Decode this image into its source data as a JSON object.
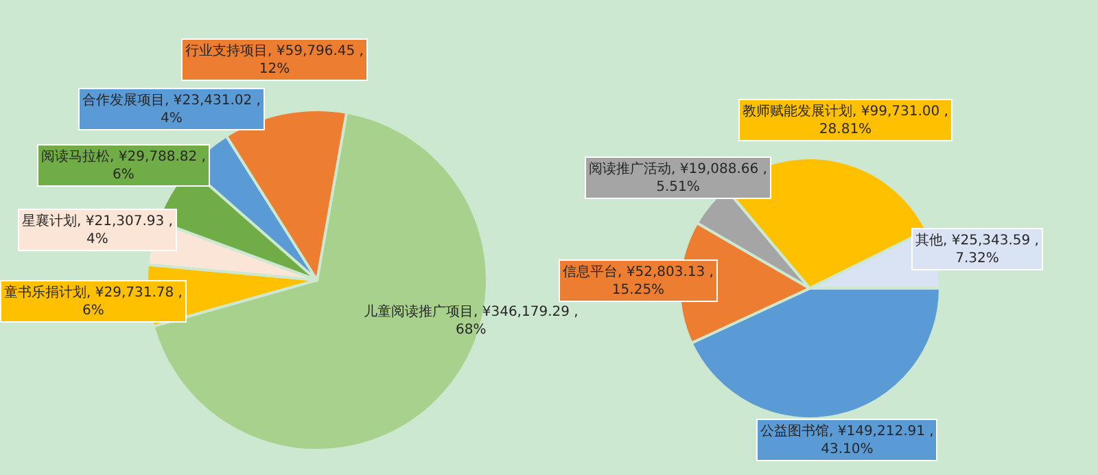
{
  "chart_data": [
    {
      "type": "pie",
      "categories": [
        "儿童阅读推广项目",
        "童书乐捐计划",
        "星襄计划",
        "阅读马拉松",
        "合作发展项目",
        "行业支持项目"
      ],
      "values": [
        346179.29,
        29731.78,
        21307.93,
        29788.82,
        23431.02,
        59796.45
      ],
      "colors": [
        "#a9d18e",
        "#ffc000",
        "#fbe5d6",
        "#70ad47",
        "#5b9bd5",
        "#ed7d31"
      ],
      "value_labels": [
        "¥346,179.29 , 68%",
        "¥29,731.78 , 6%",
        "¥21,307.93 , 4%",
        "¥29,788.82 , 6%",
        "¥23,431.02 , 4%",
        "¥59,796.45 , 12%"
      ]
    },
    {
      "type": "pie",
      "categories": [
        "公益图书馆",
        "信息平台",
        "阅读推广活动",
        "教师赋能发展计划",
        "其他"
      ],
      "values": [
        149212.91,
        52803.13,
        19088.66,
        99731.0,
        25343.59
      ],
      "colors": [
        "#5b9bd5",
        "#ed7d31",
        "#a5a5a5",
        "#ffc000",
        "#dae3f3"
      ],
      "value_labels": [
        "¥149,212.91 , 43.10%",
        "¥52,803.13 , 15.25%",
        "¥19,088.66 , 5.51%",
        "¥99,731.00 , 28.81%",
        "¥25,343.59 , 7.32%"
      ]
    }
  ]
}
